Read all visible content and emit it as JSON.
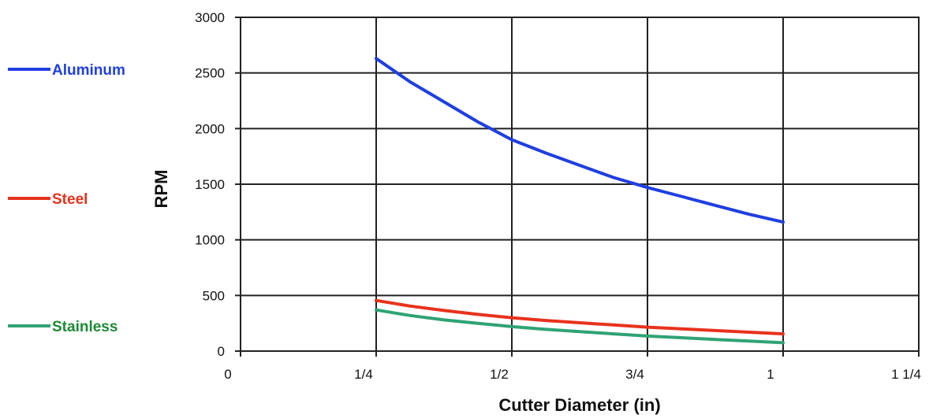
{
  "chart_data": {
    "type": "line",
    "xlabel": "Cutter Diameter (in)",
    "ylabel": "RPM",
    "xlim": [
      0,
      1.25
    ],
    "ylim": [
      0,
      3000
    ],
    "x_ticks": [
      0,
      0.25,
      0.5,
      0.75,
      1,
      1.25
    ],
    "x_tick_labels": [
      "0",
      "1/4",
      "1/2",
      "3/4",
      "1",
      "1 1/4"
    ],
    "y_ticks": [
      0,
      500,
      1000,
      1500,
      2000,
      2500,
      3000
    ],
    "y_tick_labels": [
      "0",
      "500",
      "1000",
      "1500",
      "2000",
      "2500",
      "3000"
    ],
    "grid": true,
    "legend_position": "left",
    "series": [
      {
        "name": "Aluminum",
        "color": "#1f3fe0",
        "x": [
          0.25,
          0.3125,
          0.375,
          0.4375,
          0.5,
          0.5625,
          0.625,
          0.6875,
          0.75,
          0.8125,
          0.875,
          0.9375,
          1.0
        ],
        "y": [
          2630,
          2420,
          2240,
          2060,
          1900,
          1780,
          1670,
          1560,
          1470,
          1390,
          1310,
          1230,
          1160
        ]
      },
      {
        "name": "Steel",
        "color": "#e8321c",
        "x": [
          0.25,
          0.3125,
          0.375,
          0.4375,
          0.5,
          0.5625,
          0.625,
          0.6875,
          0.75,
          0.8125,
          0.875,
          0.9375,
          1.0
        ],
        "y": [
          455,
          405,
          365,
          330,
          300,
          275,
          255,
          235,
          215,
          200,
          185,
          170,
          155
        ]
      },
      {
        "name": "Stainless",
        "color": "#2fa374",
        "x": [
          0.25,
          0.3125,
          0.375,
          0.4375,
          0.5,
          0.5625,
          0.625,
          0.6875,
          0.75,
          0.8125,
          0.875,
          0.9375,
          1.0
        ],
        "y": [
          370,
          320,
          280,
          250,
          220,
          195,
          175,
          155,
          135,
          120,
          105,
          90,
          75
        ]
      }
    ]
  },
  "legend": [
    {
      "label": "Aluminum",
      "line_color": "#1f3fe0",
      "text_color": "#1f3fe0"
    },
    {
      "label": "Steel",
      "line_color": "#e8321c",
      "text_color": "#e8321c"
    },
    {
      "label": "Stainless",
      "line_color": "#2fa374",
      "text_color": "#1e8a35"
    }
  ]
}
